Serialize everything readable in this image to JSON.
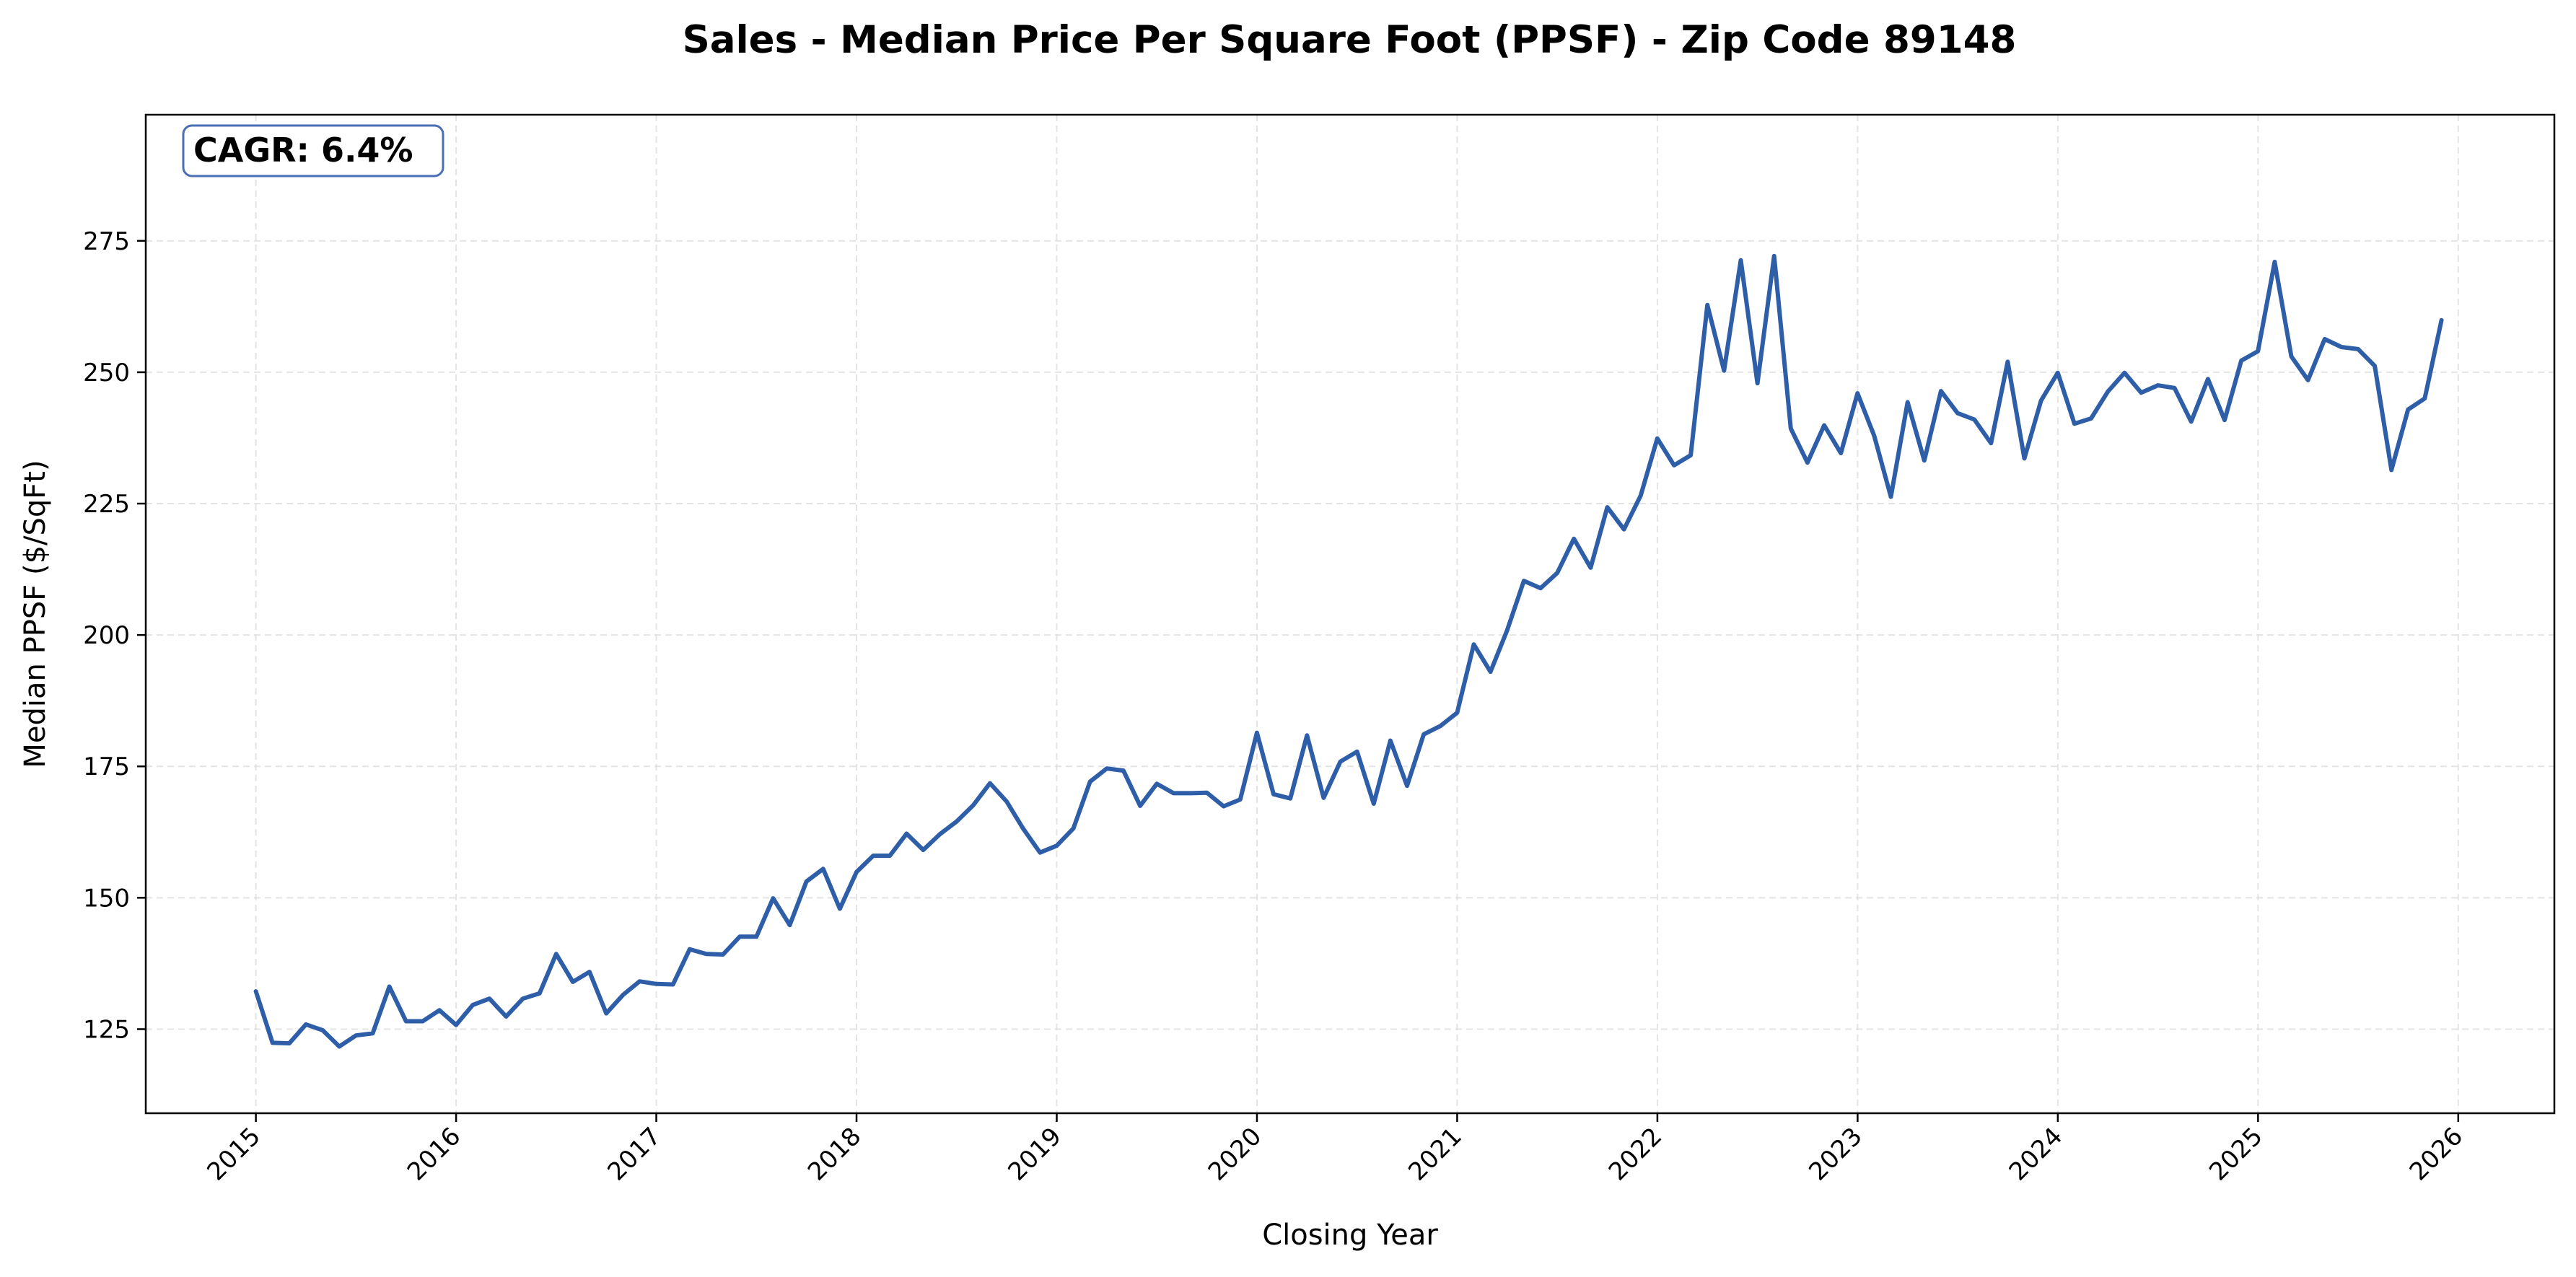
{
  "chart_data": {
    "type": "line",
    "title": "Sales - Median Price Per Square Foot (PPSF) - Zip Code 89148",
    "xlabel": "Closing Year",
    "ylabel": "Median PPSF ($/SqFt)",
    "xlim": [
      2014.45,
      2026.48
    ],
    "ylim": [
      109,
      299
    ],
    "xticks": [
      2015,
      2016,
      2017,
      2018,
      2019,
      2020,
      2021,
      2022,
      2023,
      2024,
      2025,
      2026
    ],
    "xtick_labels": [
      "2015",
      "2016",
      "2017",
      "2018",
      "2019",
      "2020",
      "2021",
      "2022",
      "2023",
      "2024",
      "2025",
      "2026"
    ],
    "yticks": [
      125,
      150,
      175,
      200,
      225,
      250,
      275
    ],
    "ytick_labels": [
      "125",
      "150",
      "175",
      "200",
      "225",
      "250",
      "275"
    ],
    "grid": true,
    "annotation": "CAGR: 6.4%",
    "series": [
      {
        "name": "Median PPSF",
        "color": "#2e5ea8",
        "x_start": 2015.0,
        "x_step": 0.08333,
        "values": [
          132.2,
          122.4,
          122.3,
          125.9,
          124.8,
          121.7,
          123.8,
          124.2,
          133.1,
          126.5,
          126.5,
          128.6,
          125.8,
          129.6,
          130.8,
          127.4,
          130.8,
          131.8,
          139.3,
          134.0,
          135.9,
          128.0,
          131.5,
          134.1,
          133.6,
          133.5,
          140.2,
          139.3,
          139.2,
          142.6,
          142.6,
          149.9,
          144.8,
          153.1,
          155.5,
          147.9,
          154.9,
          158.0,
          158.0,
          162.2,
          159.1,
          162.1,
          164.5,
          167.6,
          171.8,
          168.3,
          163.1,
          158.6,
          159.9,
          163.2,
          172.1,
          174.6,
          174.2,
          167.5,
          171.7,
          169.9,
          169.9,
          170.0,
          167.4,
          168.7,
          181.4,
          169.7,
          168.9,
          180.9,
          169.0,
          175.9,
          177.8,
          167.9,
          179.9,
          171.3,
          181.1,
          182.7,
          185.2,
          198.2,
          193.0,
          200.9,
          210.3,
          208.9,
          211.8,
          218.3,
          212.8,
          224.3,
          220.1,
          226.5,
          237.4,
          232.3,
          234.2,
          262.8,
          250.3,
          271.3,
          247.9,
          272.1,
          239.3,
          232.8,
          239.9,
          234.6,
          246.0,
          237.9,
          226.3,
          244.3,
          233.2,
          246.4,
          242.2,
          241.0,
          236.5,
          252.0,
          233.6,
          244.6,
          249.9,
          240.2,
          241.2,
          246.3,
          249.9,
          246.1,
          247.5,
          247.0,
          240.6,
          248.7,
          240.9,
          252.2,
          254.0,
          271.0,
          253.0,
          248.5,
          256.3,
          254.8,
          254.4,
          251.2,
          231.4,
          242.9,
          245.0,
          259.9
        ]
      }
    ]
  }
}
